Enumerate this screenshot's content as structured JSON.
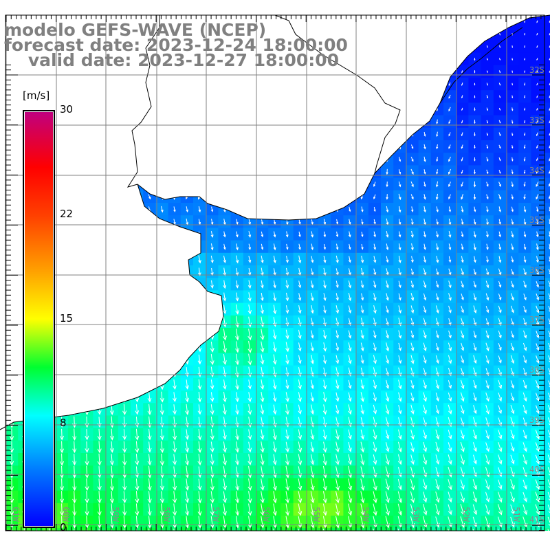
{
  "title": {
    "line1": "modelo GEFS-WAVE (NCEP)",
    "line2": "forecast date: 2023-12-24 18:00:00",
    "line3": "    valid date: 2023-12-27 18:00:00"
  },
  "colorbar": {
    "unit": "[m/s]",
    "ticks": [
      "30",
      "22",
      "15",
      "8",
      "0"
    ],
    "min": 0,
    "max": 30,
    "stops": [
      {
        "v": 0,
        "c": "#0000ff"
      },
      {
        "v": 4,
        "c": "#0078ff"
      },
      {
        "v": 8,
        "c": "#00ffff"
      },
      {
        "v": 11.5,
        "c": "#00ff30"
      },
      {
        "v": 15,
        "c": "#ffff00"
      },
      {
        "v": 18.5,
        "c": "#ffa000"
      },
      {
        "v": 22.5,
        "c": "#ff4000"
      },
      {
        "v": 26,
        "c": "#ff0000"
      },
      {
        "v": 30,
        "c": "#c0007f"
      }
    ]
  },
  "grid": {
    "lat_labels": [
      "32S",
      "33S",
      "34S",
      "35S",
      "36S",
      "37S",
      "38S",
      "39S",
      "40S",
      "41S"
    ],
    "lon_labels": [
      "61W",
      "60W",
      "59W",
      "58W",
      "57W",
      "56W",
      "55W",
      "54W",
      "53W",
      "52W",
      "51W"
    ]
  },
  "colors": {
    "land": "#ffffff",
    "grid": "#808080",
    "coast": "#000000",
    "arrow": "#ffffff"
  }
}
